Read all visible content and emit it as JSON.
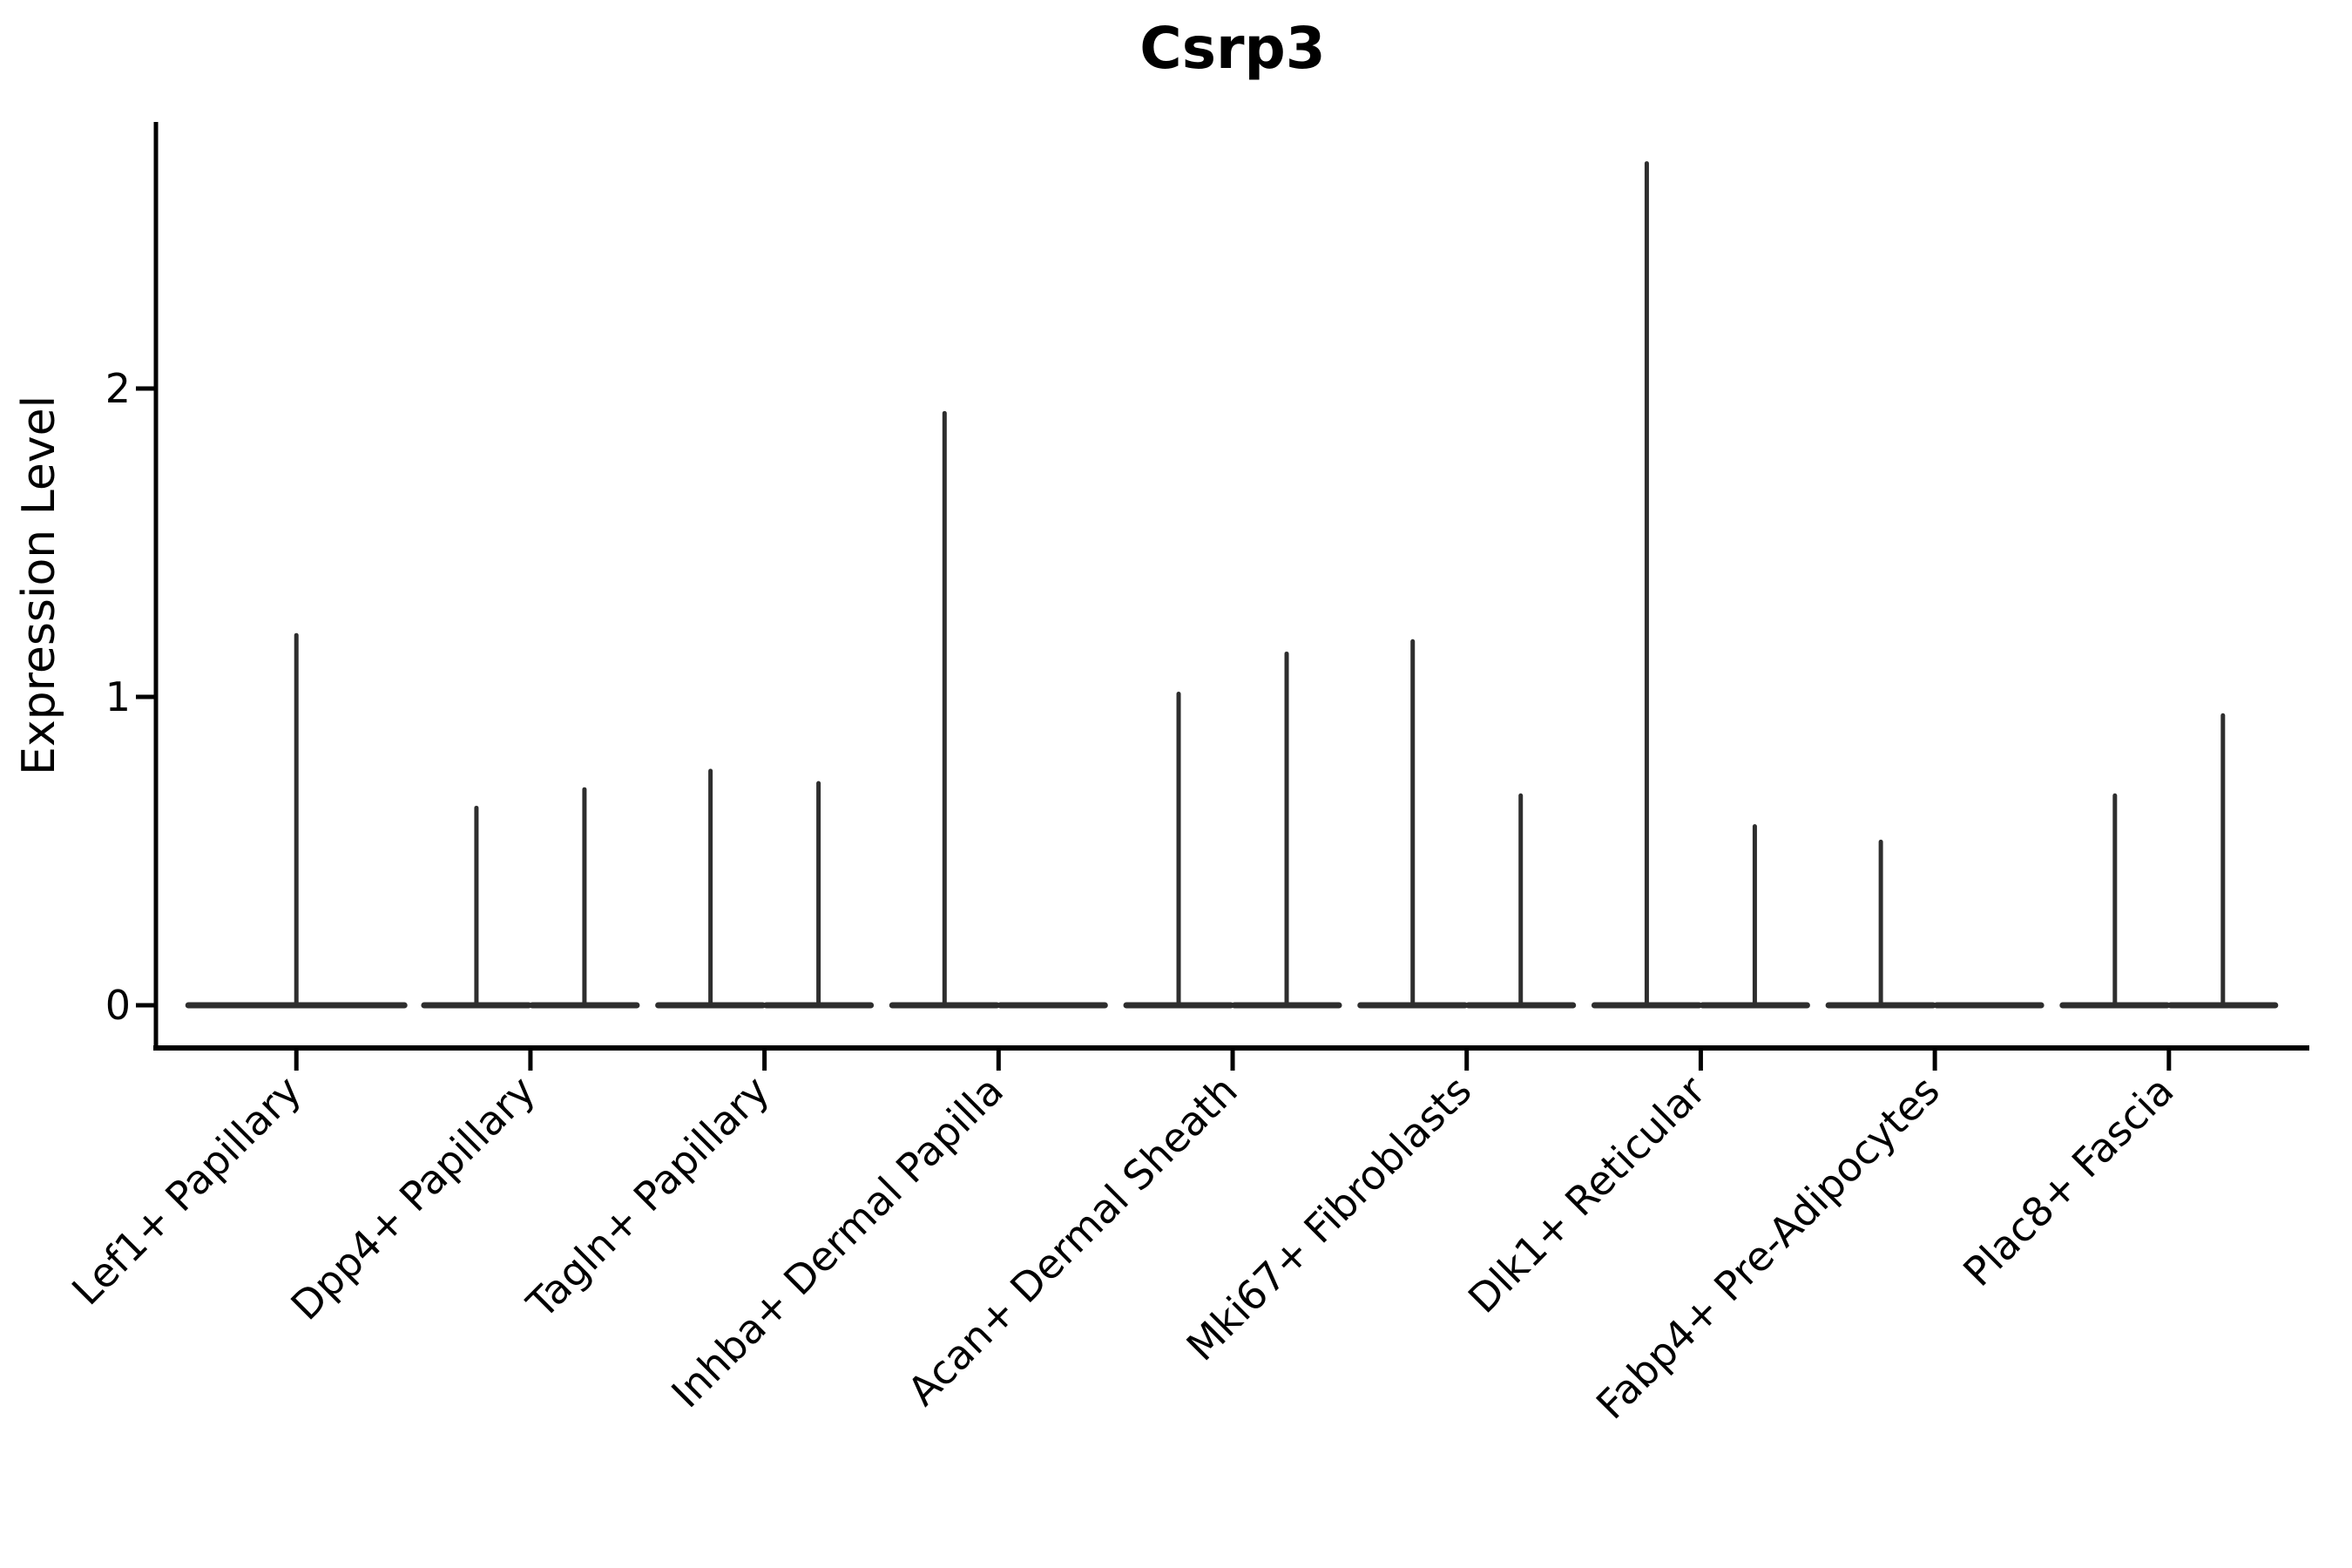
{
  "page": {
    "background_color": "#ffffff"
  },
  "chart_data": {
    "type": "violin",
    "title": "Csrp3",
    "xlabel": "",
    "ylabel": "Expression Level",
    "yticks": [
      0,
      1,
      2
    ],
    "ylim": [
      -0.14,
      2.86
    ],
    "grid": false,
    "legend": "none",
    "x_tick_rotation": 45,
    "violin_color": "#2e2e2e",
    "axis_color": "#000000",
    "description": "Violin plot of Csrp3 expression per fibroblast subtype; most cells have zero expression (flat wide base at 0) with thin density spikes reaching the maximum expression value. Categories with two spikes contain two side-by-side violins; 'max' 0 means a flat violin with no expressing cells.",
    "categories": [
      "Lef1+ Papillary",
      "Dpp4+ Papillary",
      "Tagln+ Papillary",
      "Inhba+ Dermal Papilla",
      "Acan+ Dermal Sheath",
      "Mki67+ Fibroblasts",
      "Dlk1+ Reticular",
      "Fabp4+ Pre-Adipocytes",
      "Plac8+ Fascia"
    ],
    "violins": [
      [
        {
          "side": "full",
          "max": 1.2
        }
      ],
      [
        {
          "side": "left",
          "max": 0.64
        },
        {
          "side": "right",
          "max": 0.7
        }
      ],
      [
        {
          "side": "left",
          "max": 0.76
        },
        {
          "side": "right",
          "max": 0.72
        }
      ],
      [
        {
          "side": "left",
          "max": 1.92
        },
        {
          "side": "right",
          "max": 0.0
        }
      ],
      [
        {
          "side": "left",
          "max": 1.01
        },
        {
          "side": "right",
          "max": 1.14
        }
      ],
      [
        {
          "side": "left",
          "max": 1.18
        },
        {
          "side": "right",
          "max": 0.68
        }
      ],
      [
        {
          "side": "left",
          "max": 2.73
        },
        {
          "side": "right",
          "max": 0.58
        }
      ],
      [
        {
          "side": "left",
          "max": 0.53
        },
        {
          "side": "right",
          "max": 0.0
        }
      ],
      [
        {
          "side": "left",
          "max": 0.68
        },
        {
          "side": "right",
          "max": 0.94
        }
      ]
    ]
  }
}
